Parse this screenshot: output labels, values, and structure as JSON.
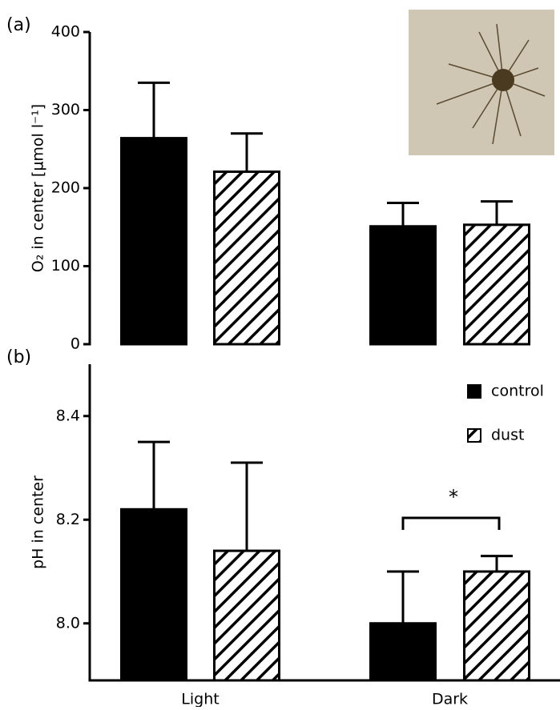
{
  "chart_data": [
    {
      "type": "bar",
      "panel_label": "(a)",
      "y_label": "O₂ in center [µmol l⁻¹]",
      "ylim": [
        0,
        400
      ],
      "yticks": [
        0,
        100,
        200,
        300,
        400
      ],
      "series": [
        {
          "color": "#000000",
          "hatch": false,
          "values": [
            264,
            151
          ],
          "errors": [
            71,
            30
          ]
        },
        {
          "color": "#000000",
          "hatch": true,
          "values": [
            221,
            153
          ],
          "errors": [
            49,
            30
          ]
        }
      ]
    },
    {
      "type": "bar",
      "panel_label": "(b)",
      "y_label": "pH in center",
      "categories": [
        "Light",
        "Dark"
      ],
      "ylim": [
        7.89,
        8.5
      ],
      "yticks": [
        {
          "value": 8,
          "label": "8.0"
        },
        8.2,
        8.4
      ],
      "series": [
        {
          "name": "control",
          "color": "#000000",
          "hatch": false,
          "values": [
            8.22,
            8.0
          ],
          "errors": [
            0.13,
            0.1
          ]
        },
        {
          "name": "dust",
          "color": "#000000",
          "hatch": true,
          "values": [
            8.14,
            8.1
          ],
          "errors": [
            0.17,
            0.03
          ]
        }
      ],
      "annotation": "*"
    }
  ]
}
